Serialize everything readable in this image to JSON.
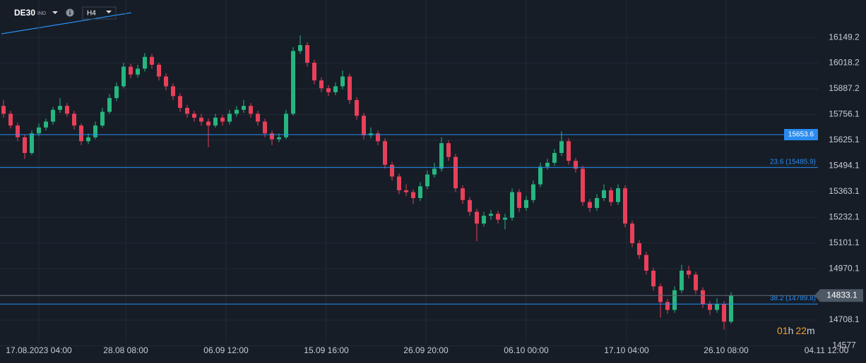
{
  "header": {
    "symbol": "DE30",
    "market": "IND",
    "timeframe": "H4"
  },
  "chart_data": {
    "type": "candlestick",
    "up_color": "#26b67f",
    "down_color": "#e8405a",
    "ylim": [
      14579,
      16340
    ],
    "xlim": [
      0,
      122.6
    ],
    "yticks": [
      16149.2,
      16018.2,
      15887.2,
      15756.1,
      15625.1,
      15494.1,
      15363.1,
      15232.1,
      15101.1,
      14970.1,
      14708.1,
      14577.0
    ],
    "xticks": [
      {
        "value": 5.5,
        "label": "17.08.2023  04:00"
      },
      {
        "value": 17.8,
        "label": "28.08  08:00"
      },
      {
        "value": 32,
        "label": "06.09  12:00"
      },
      {
        "value": 46.2,
        "label": "15.09  16:00"
      },
      {
        "value": 60.3,
        "label": "26.09  20:00"
      },
      {
        "value": 74.5,
        "label": "06.10  00:00"
      },
      {
        "value": 88.7,
        "label": "17.10  04:00"
      },
      {
        "value": 102.8,
        "label": "26.10  08:00"
      },
      {
        "value": 117,
        "label": "04.11  12:00"
      }
    ],
    "grid": true,
    "candles": [
      [
        15800,
        15830,
        15740,
        15760
      ],
      [
        15760,
        15775,
        15685,
        15700
      ],
      [
        15700,
        15715,
        15620,
        15640
      ],
      [
        15640,
        15655,
        15530,
        15560
      ],
      [
        15560,
        15675,
        15550,
        15660
      ],
      [
        15660,
        15710,
        15645,
        15690
      ],
      [
        15690,
        15735,
        15675,
        15720
      ],
      [
        15720,
        15795,
        15705,
        15780
      ],
      [
        15780,
        15840,
        15765,
        15800
      ],
      [
        15800,
        15815,
        15745,
        15760
      ],
      [
        15760,
        15775,
        15680,
        15700
      ],
      [
        15700,
        15710,
        15600,
        15620
      ],
      [
        15620,
        15660,
        15605,
        15640
      ],
      [
        15640,
        15720,
        15630,
        15700
      ],
      [
        15700,
        15790,
        15690,
        15770
      ],
      [
        15770,
        15860,
        15760,
        15840
      ],
      [
        15840,
        15920,
        15825,
        15900
      ],
      [
        15900,
        16020,
        15890,
        16000
      ],
      [
        16000,
        16015,
        15940,
        15960
      ],
      [
        15960,
        16010,
        15945,
        15990
      ],
      [
        15990,
        16070,
        15975,
        16050
      ],
      [
        16050,
        16065,
        15990,
        16010
      ],
      [
        16010,
        16020,
        15930,
        15950
      ],
      [
        15950,
        15965,
        15880,
        15900
      ],
      [
        15900,
        15915,
        15830,
        15850
      ],
      [
        15850,
        15865,
        15770,
        15790
      ],
      [
        15790,
        15805,
        15740,
        15760
      ],
      [
        15760,
        15775,
        15720,
        15740
      ],
      [
        15740,
        15760,
        15700,
        15720
      ],
      [
        15720,
        15735,
        15590,
        15700
      ],
      [
        15700,
        15760,
        15690,
        15740
      ],
      [
        15740,
        15755,
        15700,
        15720
      ],
      [
        15720,
        15780,
        15705,
        15760
      ],
      [
        15760,
        15800,
        15745,
        15780
      ],
      [
        15780,
        15830,
        15765,
        15800
      ],
      [
        15800,
        15815,
        15740,
        15760
      ],
      [
        15760,
        15775,
        15700,
        15720
      ],
      [
        15720,
        15735,
        15640,
        15660
      ],
      [
        15660,
        15675,
        15600,
        15630
      ],
      [
        15630,
        15660,
        15615,
        15640
      ],
      [
        15640,
        15780,
        15630,
        15760
      ],
      [
        15760,
        16100,
        15750,
        16080
      ],
      [
        16080,
        16160,
        16065,
        16110
      ],
      [
        16110,
        16125,
        16000,
        16020
      ],
      [
        16020,
        16035,
        15910,
        15930
      ],
      [
        15930,
        15945,
        15870,
        15890
      ],
      [
        15890,
        15905,
        15850,
        15870
      ],
      [
        15870,
        15920,
        15855,
        15900
      ],
      [
        15900,
        15980,
        15885,
        15950
      ],
      [
        15950,
        15965,
        15810,
        15830
      ],
      [
        15830,
        15845,
        15730,
        15750
      ],
      [
        15750,
        15765,
        15630,
        15650
      ],
      [
        15650,
        15690,
        15635,
        15660
      ],
      [
        15660,
        15675,
        15600,
        15620
      ],
      [
        15620,
        15635,
        15480,
        15500
      ],
      [
        15500,
        15515,
        15420,
        15440
      ],
      [
        15440,
        15455,
        15350,
        15370
      ],
      [
        15370,
        15400,
        15340,
        15360
      ],
      [
        15360,
        15375,
        15300,
        15330
      ],
      [
        15330,
        15410,
        15315,
        15390
      ],
      [
        15390,
        15470,
        15375,
        15450
      ],
      [
        15450,
        15510,
        15435,
        15480
      ],
      [
        15480,
        15640,
        15465,
        15610
      ],
      [
        15610,
        15625,
        15520,
        15540
      ],
      [
        15540,
        15555,
        15360,
        15380
      ],
      [
        15380,
        15395,
        15300,
        15320
      ],
      [
        15320,
        15335,
        15240,
        15260
      ],
      [
        15260,
        15275,
        15110,
        15200
      ],
      [
        15200,
        15260,
        15185,
        15240
      ],
      [
        15240,
        15270,
        15220,
        15250
      ],
      [
        15250,
        15265,
        15200,
        15220
      ],
      [
        15220,
        15250,
        15170,
        15230
      ],
      [
        15230,
        15380,
        15215,
        15360
      ],
      [
        15360,
        15375,
        15260,
        15280
      ],
      [
        15280,
        15340,
        15265,
        15320
      ],
      [
        15320,
        15420,
        15305,
        15400
      ],
      [
        15400,
        15510,
        15385,
        15490
      ],
      [
        15490,
        15530,
        15475,
        15510
      ],
      [
        15510,
        15580,
        15495,
        15560
      ],
      [
        15560,
        15670,
        15545,
        15620
      ],
      [
        15620,
        15635,
        15500,
        15520
      ],
      [
        15520,
        15535,
        15460,
        15480
      ],
      [
        15480,
        15495,
        15290,
        15310
      ],
      [
        15310,
        15325,
        15260,
        15280
      ],
      [
        15280,
        15350,
        15265,
        15330
      ],
      [
        15330,
        15400,
        15315,
        15370
      ],
      [
        15370,
        15385,
        15290,
        15310
      ],
      [
        15310,
        15400,
        15295,
        15380
      ],
      [
        15380,
        15395,
        15180,
        15200
      ],
      [
        15200,
        15215,
        15080,
        15100
      ],
      [
        15100,
        15115,
        15020,
        15040
      ],
      [
        15040,
        15055,
        14940,
        14960
      ],
      [
        14960,
        14975,
        14860,
        14880
      ],
      [
        14880,
        14895,
        14720,
        14800
      ],
      [
        14800,
        14815,
        14740,
        14760
      ],
      [
        14760,
        14880,
        14745,
        14860
      ],
      [
        14860,
        14990,
        14845,
        14960
      ],
      [
        14960,
        14985,
        14920,
        14940
      ],
      [
        14940,
        14955,
        14840,
        14860
      ],
      [
        14860,
        14875,
        14770,
        14790
      ],
      [
        14790,
        14805,
        14735,
        14760
      ],
      [
        14760,
        14820,
        14745,
        14790
      ],
      [
        14790,
        14805,
        14660,
        14700
      ],
      [
        14700,
        14850,
        14690,
        14833
      ]
    ],
    "levels": [
      {
        "value": 15653.6,
        "color": "#2a8cf0",
        "boxed": true
      },
      {
        "value": 15485.9,
        "label": "23.6 (15485.9)",
        "color": "#2a8cf0"
      },
      {
        "value": 14789.8,
        "label": "38.2 (14789.8)",
        "color": "#2a8cf0"
      }
    ],
    "last_price": 14833.1,
    "countdown": [
      "01",
      "h",
      "22",
      "m"
    ]
  }
}
